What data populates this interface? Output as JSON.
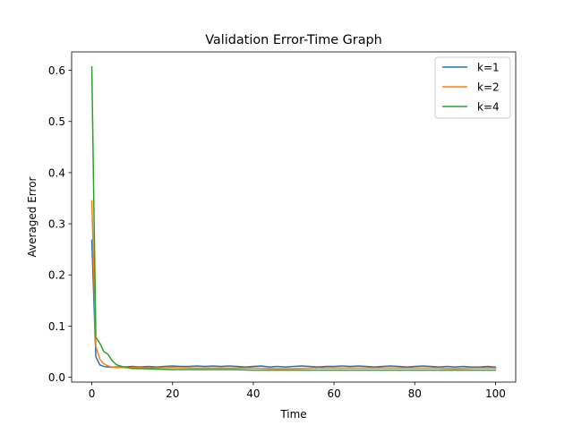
{
  "chart_data": {
    "type": "line",
    "title": "Validation Error-Time Graph",
    "xlabel": "Time",
    "ylabel": "Averaged Error",
    "xlim": [
      -5,
      105
    ],
    "ylim": [
      -0.0095,
      0.636
    ],
    "xticks": [
      0,
      20,
      40,
      60,
      80,
      100
    ],
    "yticks": [
      0.0,
      0.1,
      0.2,
      0.3,
      0.4,
      0.5,
      0.6
    ],
    "xtick_labels": [
      "0",
      "20",
      "40",
      "60",
      "80",
      "100"
    ],
    "ytick_labels": [
      "0.0",
      "0.1",
      "0.2",
      "0.3",
      "0.4",
      "0.5",
      "0.6"
    ],
    "grid": false,
    "legend_position": "top-right",
    "series": [
      {
        "name": "k=1",
        "color": "#1f77b4",
        "x": [
          0,
          1,
          2,
          3,
          4,
          5,
          6,
          8,
          10,
          12,
          14,
          16,
          18,
          20,
          22,
          24,
          26,
          28,
          30,
          32,
          34,
          36,
          38,
          40,
          42,
          44,
          46,
          48,
          50,
          52,
          54,
          56,
          58,
          60,
          62,
          64,
          66,
          68,
          70,
          72,
          74,
          76,
          78,
          80,
          82,
          84,
          86,
          88,
          90,
          92,
          94,
          96,
          98,
          100
        ],
        "values": [
          0.268,
          0.04,
          0.024,
          0.021,
          0.02,
          0.02,
          0.02,
          0.02,
          0.021,
          0.02,
          0.021,
          0.02,
          0.021,
          0.022,
          0.021,
          0.021,
          0.022,
          0.021,
          0.022,
          0.021,
          0.022,
          0.021,
          0.02,
          0.021,
          0.022,
          0.02,
          0.021,
          0.02,
          0.021,
          0.022,
          0.021,
          0.02,
          0.021,
          0.021,
          0.022,
          0.021,
          0.022,
          0.021,
          0.02,
          0.021,
          0.022,
          0.021,
          0.02,
          0.021,
          0.022,
          0.021,
          0.02,
          0.021,
          0.02,
          0.021,
          0.02,
          0.02,
          0.021,
          0.02
        ]
      },
      {
        "name": "k=2",
        "color": "#ff7f0e",
        "x": [
          0,
          1,
          2,
          3,
          4,
          5,
          6,
          8,
          10,
          15,
          20,
          25,
          30,
          35,
          40,
          45,
          50,
          55,
          60,
          65,
          70,
          75,
          80,
          85,
          90,
          95,
          100
        ],
        "values": [
          0.345,
          0.06,
          0.035,
          0.026,
          0.022,
          0.02,
          0.019,
          0.019,
          0.019,
          0.018,
          0.019,
          0.018,
          0.018,
          0.018,
          0.018,
          0.017,
          0.017,
          0.018,
          0.018,
          0.018,
          0.018,
          0.018,
          0.018,
          0.018,
          0.017,
          0.018,
          0.018
        ]
      },
      {
        "name": "k=4",
        "color": "#2ca02c",
        "x": [
          0,
          1,
          2,
          3,
          4,
          5,
          6,
          7,
          8,
          10,
          12,
          15,
          20,
          25,
          30,
          35,
          40,
          45,
          50,
          55,
          60,
          65,
          70,
          75,
          80,
          85,
          90,
          95,
          100
        ],
        "values": [
          0.607,
          0.078,
          0.066,
          0.05,
          0.045,
          0.033,
          0.025,
          0.022,
          0.02,
          0.017,
          0.017,
          0.016,
          0.015,
          0.015,
          0.015,
          0.015,
          0.014,
          0.014,
          0.014,
          0.014,
          0.014,
          0.014,
          0.014,
          0.014,
          0.014,
          0.014,
          0.014,
          0.014,
          0.014
        ]
      }
    ]
  }
}
